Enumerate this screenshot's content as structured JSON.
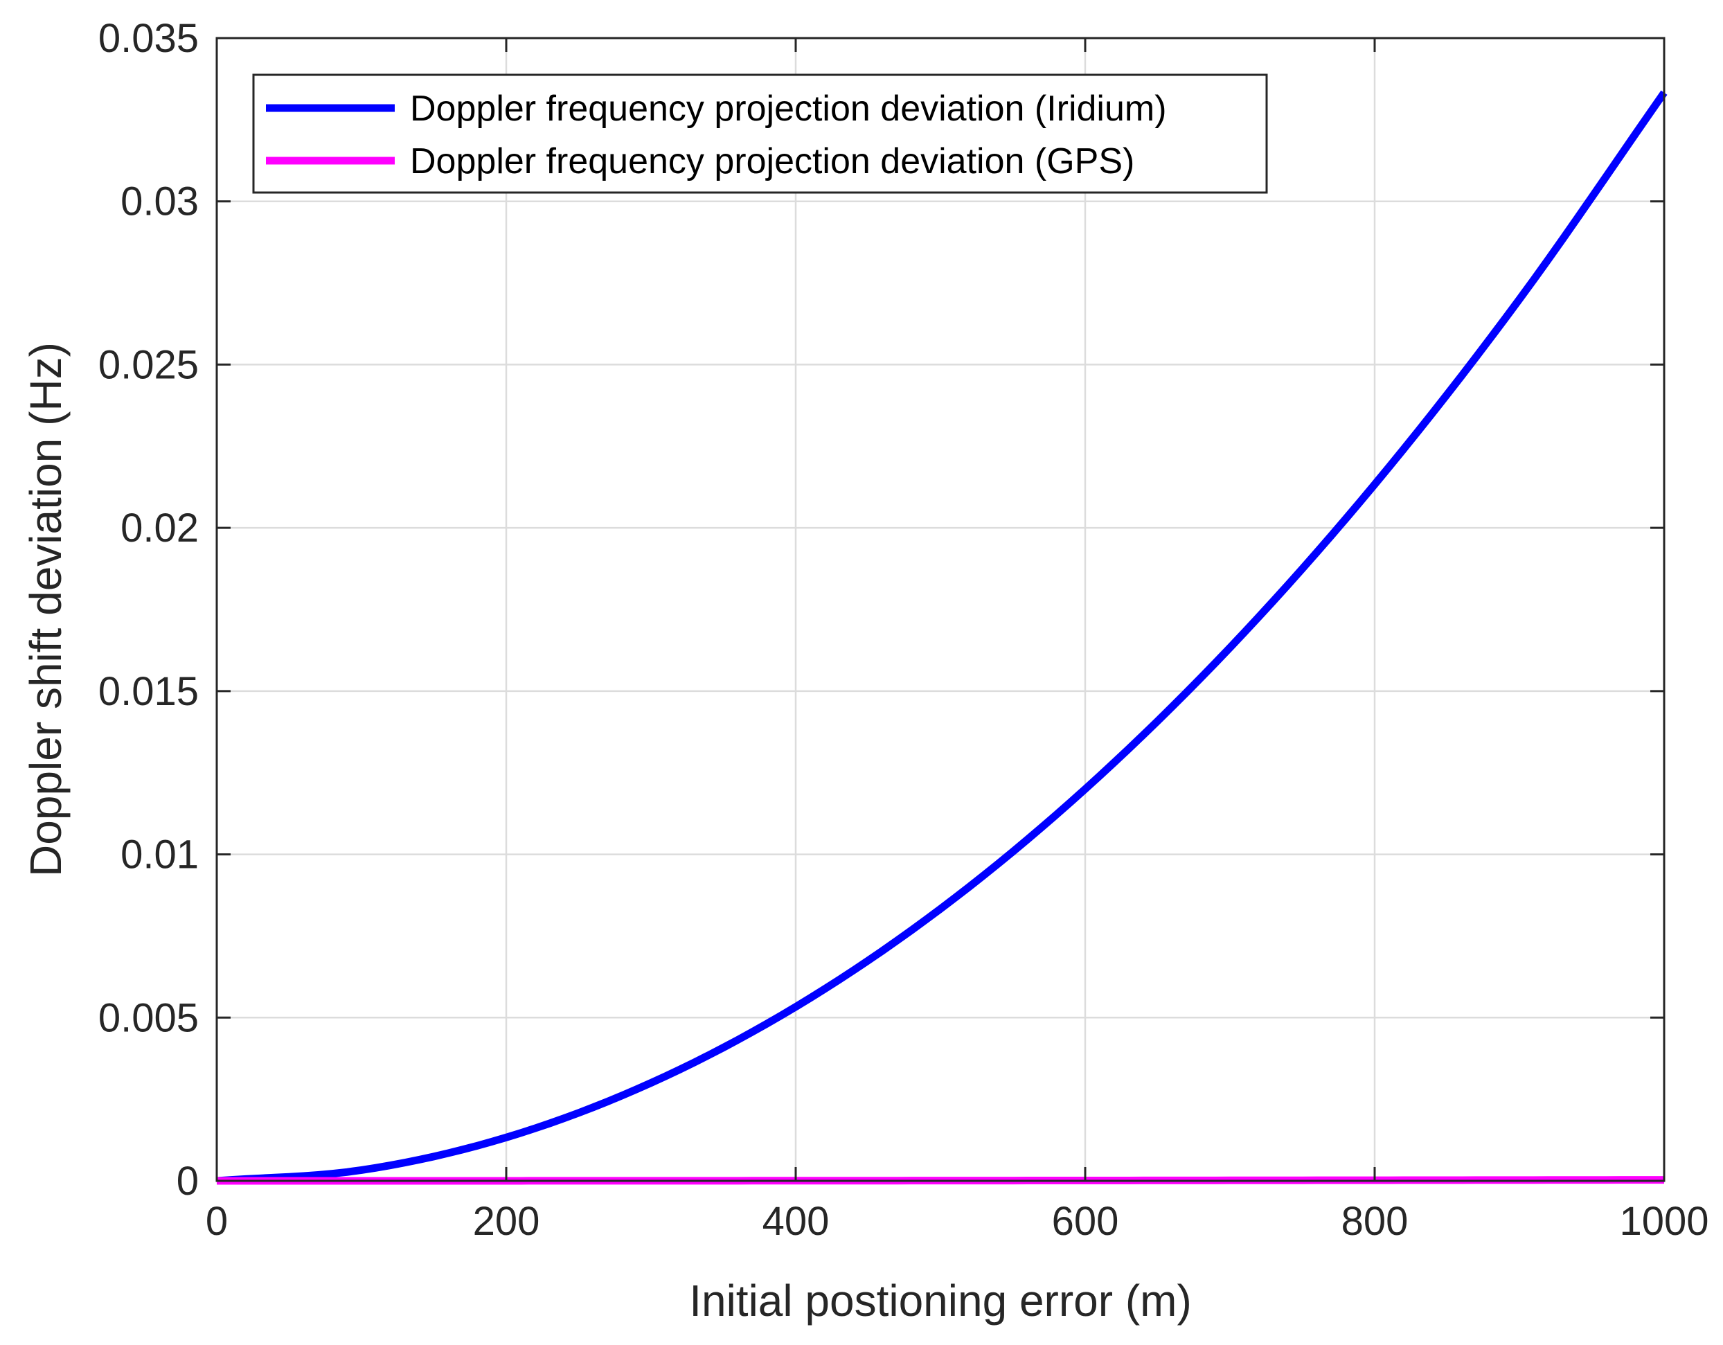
{
  "chart_data": {
    "type": "line",
    "title": "",
    "xlabel": "Initial postioning error (m)",
    "ylabel": "Doppler shift deviation (Hz)",
    "xlim": [
      0,
      1000
    ],
    "ylim": [
      0,
      0.035
    ],
    "xticks": [
      0,
      200,
      400,
      600,
      800,
      1000
    ],
    "xtick_labels": [
      "0",
      "200",
      "400",
      "600",
      "800",
      "1000"
    ],
    "yticks": [
      0,
      0.005,
      0.01,
      0.015,
      0.02,
      0.025,
      0.03,
      0.035
    ],
    "ytick_labels": [
      "0",
      "0.005",
      "0.01",
      "0.015",
      "0.02",
      "0.025",
      "0.03",
      "0.035"
    ],
    "grid": true,
    "legend_position": "top-left",
    "series": [
      {
        "name": "Doppler frequency projection deviation (Iridium)",
        "color": "#0000ff",
        "x": [
          0,
          100,
          200,
          300,
          400,
          500,
          600,
          700,
          800,
          900,
          1000
        ],
        "y": [
          0,
          0.00033,
          0.00133,
          0.003,
          0.00533,
          0.00833,
          0.012,
          0.01633,
          0.02133,
          0.027,
          0.03333
        ]
      },
      {
        "name": "Doppler frequency projection deviation (GPS)",
        "color": "#ff00ff",
        "x": [
          0,
          100,
          200,
          300,
          400,
          500,
          600,
          700,
          800,
          900,
          1000
        ],
        "y": [
          0,
          3e-07,
          1.2e-06,
          2.7e-06,
          4.8e-06,
          7.5e-06,
          1.08e-05,
          1.47e-05,
          1.92e-05,
          2.43e-05,
          3e-05
        ]
      }
    ]
  }
}
